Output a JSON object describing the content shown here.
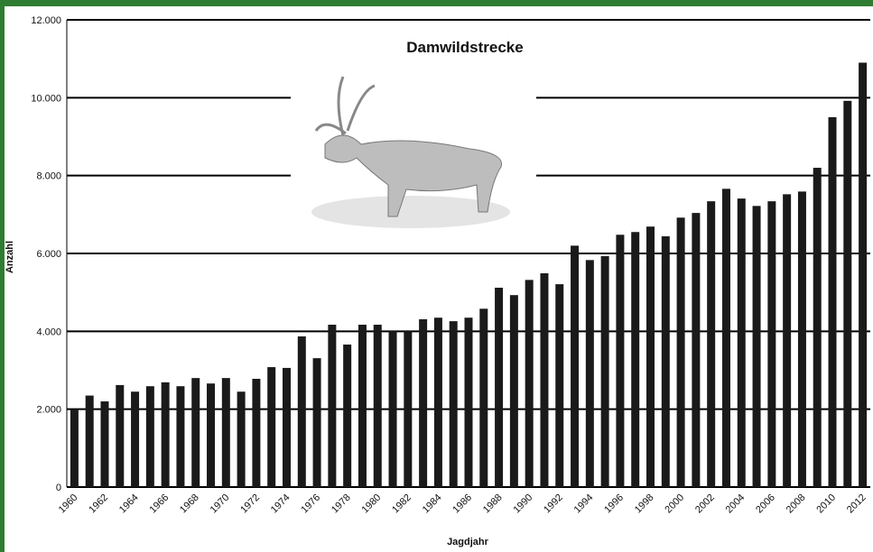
{
  "chart_data": {
    "type": "bar",
    "title": "Damwildstrecke",
    "x_label": "Jagdjahr",
    "y_label": "Anzahl",
    "categories": [
      "1960",
      null,
      "1962",
      null,
      "1964",
      null,
      "1966",
      null,
      "1968",
      null,
      "1970",
      null,
      "1972",
      null,
      "1974",
      null,
      "1976",
      null,
      "1978",
      null,
      "1980",
      null,
      "1982",
      null,
      "1984",
      null,
      "1986",
      null,
      "1988",
      null,
      "1990",
      null,
      "1992",
      null,
      "1994",
      null,
      "1996",
      null,
      "1998",
      null,
      "2000",
      null,
      "2002",
      null,
      "2004",
      null,
      "2006",
      null,
      "2008",
      null,
      "2010",
      null,
      "2012"
    ],
    "values": [
      2000,
      2350,
      2200,
      2620,
      2450,
      2590,
      2690,
      2590,
      2800,
      2660,
      2800,
      2450,
      2780,
      3080,
      3060,
      3870,
      3310,
      4170,
      3660,
      4170,
      4170,
      4000,
      4000,
      4310,
      4350,
      4260,
      4350,
      4580,
      5120,
      4930,
      5320,
      5490,
      5210,
      6200,
      5830,
      5930,
      6480,
      6550,
      6690,
      6440,
      6920,
      7040,
      7340,
      7660,
      7410,
      7220,
      7340,
      7520,
      7590,
      8200,
      9500,
      9920,
      10900
    ],
    "color": "#1a1a1a",
    "ylim": [
      0,
      12000
    ],
    "yticks": [
      0,
      {
        "value": 2000,
        "label": "2.000"
      },
      {
        "value": 4000,
        "label": "4.000"
      },
      {
        "value": 6000,
        "label": "6.000"
      },
      {
        "value": 8000,
        "label": "8.000"
      },
      {
        "value": 10000,
        "label": "10.000"
      },
      {
        "value": 12000,
        "label": "12.000"
      }
    ],
    "grid": true
  }
}
